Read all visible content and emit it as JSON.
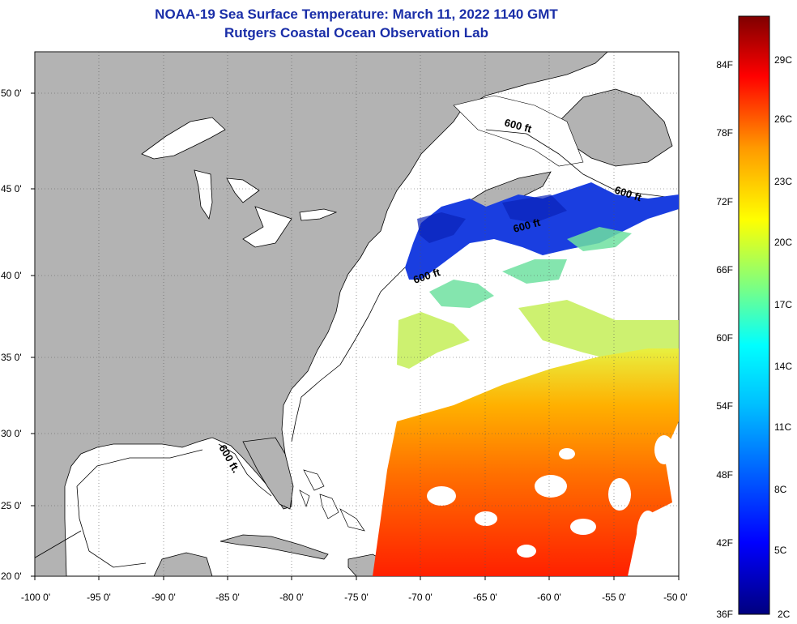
{
  "title": "NOAA-19 Sea Surface Temperature:  March 11, 2022 1140 GMT",
  "subtitle": "Rutgers Coastal Ocean Observation Lab",
  "map": {
    "lat_labels": [
      "50 0'",
      "45 0'",
      "40 0'",
      "35 0'",
      "30 0'",
      "25 0'",
      "20 0'"
    ],
    "lon_labels": [
      "-100 0'",
      "-95 0'",
      "-90 0'",
      "-85 0'",
      "-80 0'",
      "-75 0'",
      "-70 0'",
      "-65 0'",
      "-60 0'",
      "-55 0'",
      "-50 0'"
    ],
    "lat_range": [
      20,
      52
    ],
    "lon_range": [
      -100,
      -50
    ],
    "isobath_label": "600 ft.",
    "isobath_label_short": "600 ft",
    "land_color": "#b3b3b3",
    "grid": "dotted"
  },
  "colorbar": {
    "f_labels": [
      "84F",
      "78F",
      "72F",
      "66F",
      "60F",
      "54F",
      "48F",
      "42F",
      "36F"
    ],
    "c_labels": [
      "29C",
      "26C",
      "23C",
      "20C",
      "17C",
      "14C",
      "11C",
      "8C",
      "5C",
      "2C"
    ],
    "colors": [
      "#00007f",
      "#0000ff",
      "#007fff",
      "#00ffff",
      "#7fff7f",
      "#ffff00",
      "#ff7f00",
      "#ff0000",
      "#7f0000"
    ]
  }
}
